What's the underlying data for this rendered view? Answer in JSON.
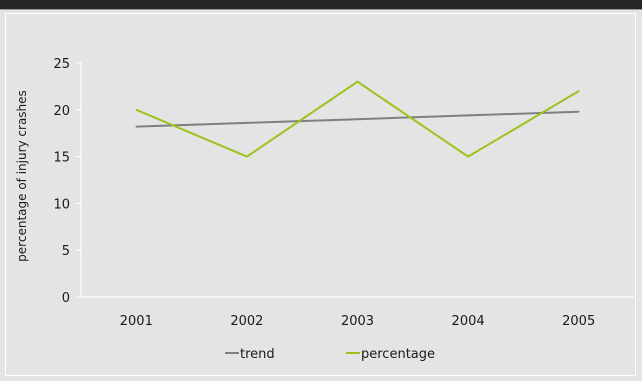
{
  "chart_data": {
    "type": "line",
    "categories": [
      "2001",
      "2002",
      "2003",
      "2004",
      "2005"
    ],
    "series": [
      {
        "name": "trend",
        "values": [
          18.2,
          18.6,
          19.0,
          19.4,
          19.8
        ],
        "color": "#7f7f7f"
      },
      {
        "name": "percentage",
        "values": [
          20,
          15,
          23,
          15,
          22
        ],
        "color": "#9bc31c"
      }
    ],
    "title": "",
    "xlabel": "",
    "ylabel": "percentage of injury crashes",
    "ylim": [
      0,
      25
    ],
    "yticks": [
      "0",
      "5",
      "10",
      "15",
      "20",
      "25"
    ],
    "grid": false,
    "legend_position": "bottom"
  }
}
